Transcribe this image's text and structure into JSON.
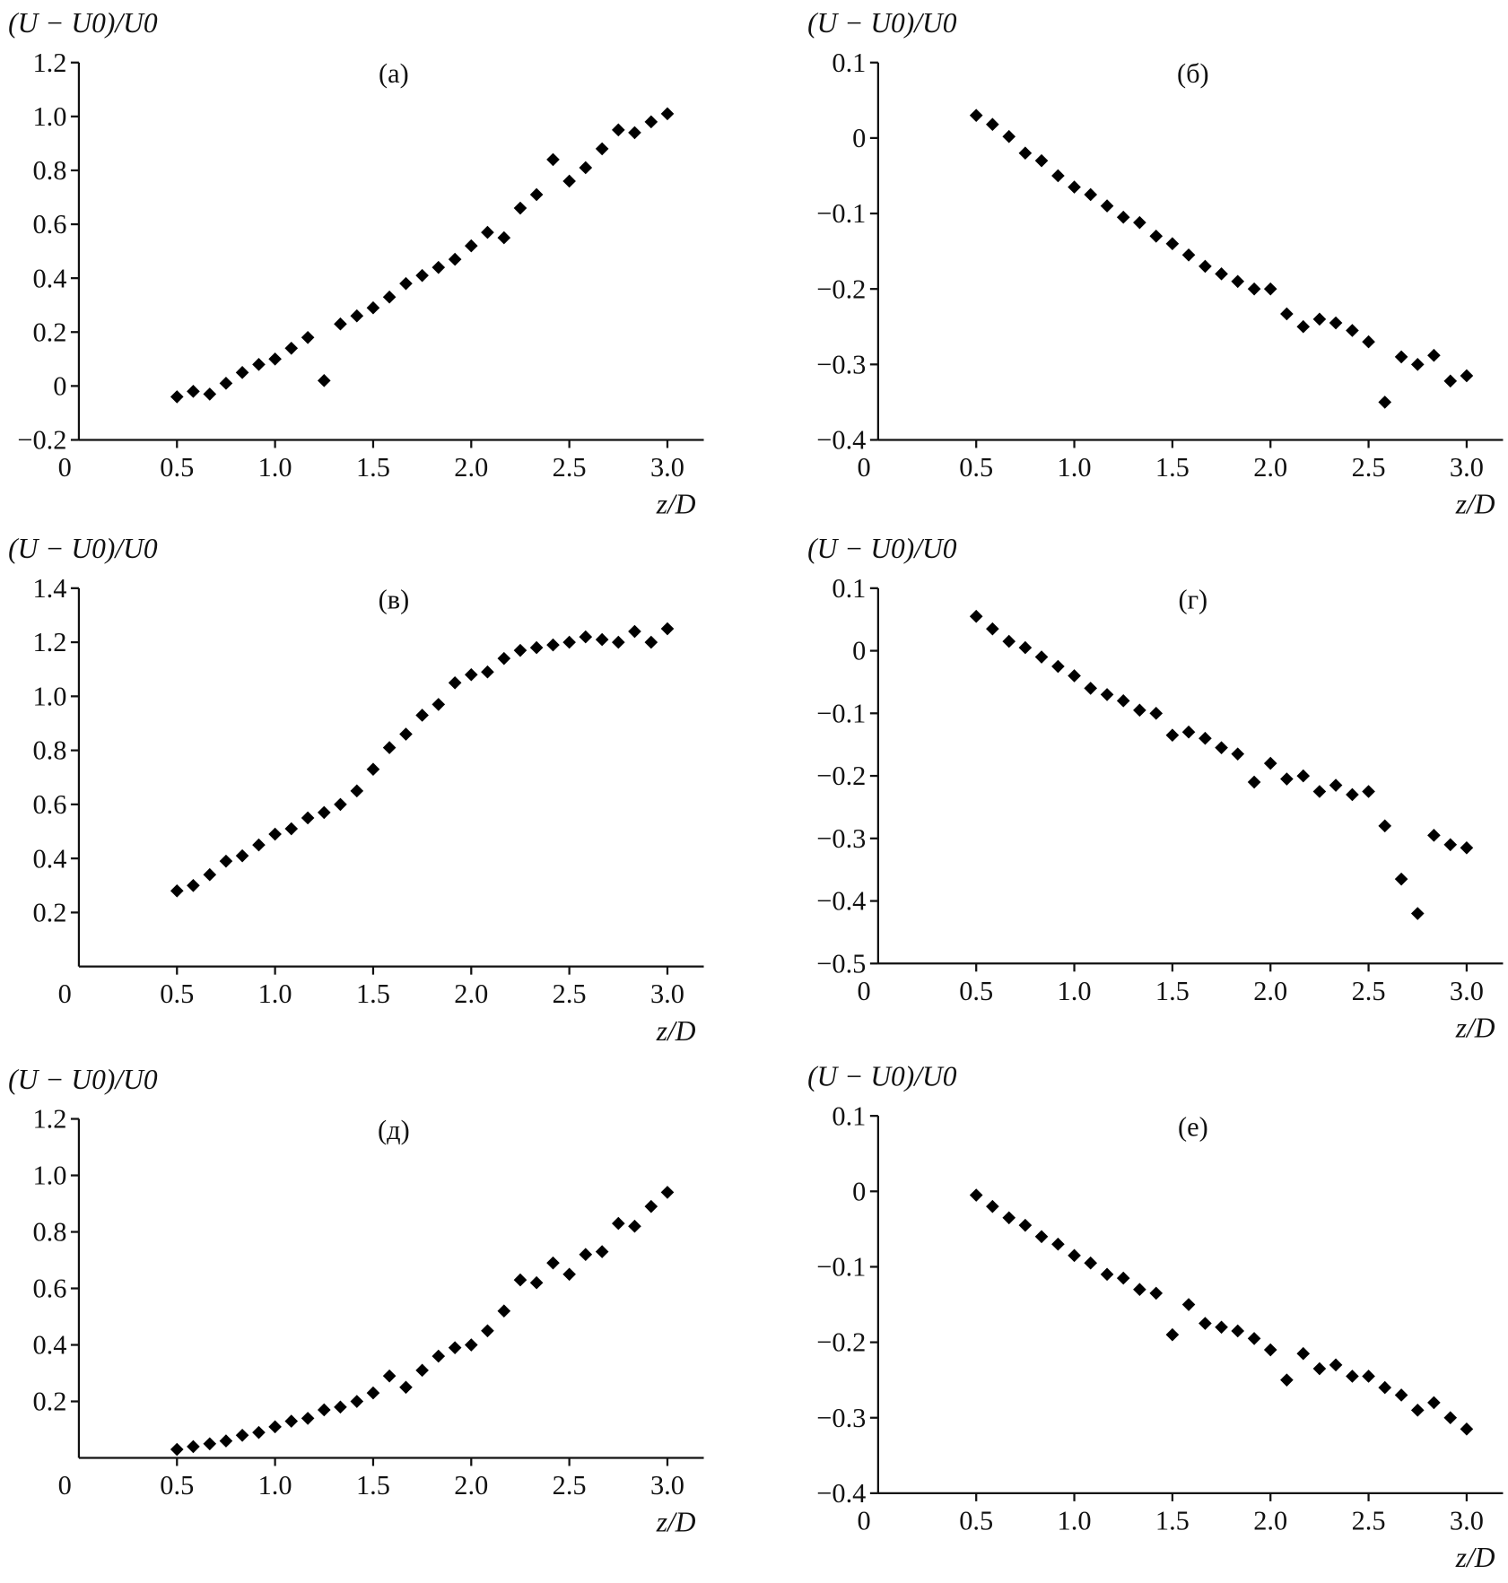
{
  "chart_data": [
    {
      "type": "scatter",
      "panel_label": "(а)",
      "ylabel": "(U − U0)/U0",
      "xlabel": "z/D",
      "xlim": [
        0,
        3.17
      ],
      "ylim": [
        -0.2,
        1.2
      ],
      "xticks": [
        "0",
        "0.5",
        "1.0",
        "1.5",
        "2.0",
        "2.5",
        "3.0"
      ],
      "yticks": [
        "−0.2",
        "0",
        "0.2",
        "0.4",
        "0.6",
        "0.8",
        "1.0",
        "1.2"
      ],
      "x": [
        0.5,
        0.583,
        0.667,
        0.75,
        0.833,
        0.917,
        1.0,
        1.083,
        1.167,
        1.25,
        1.333,
        1.417,
        1.5,
        1.583,
        1.667,
        1.75,
        1.833,
        1.917,
        2.0,
        2.083,
        2.167,
        2.25,
        2.333,
        2.417,
        2.5,
        2.583,
        2.667,
        2.75,
        2.833,
        2.917,
        3.0
      ],
      "y": [
        -0.04,
        -0.02,
        -0.03,
        0.01,
        0.05,
        0.08,
        0.1,
        0.14,
        0.18,
        0.02,
        0.23,
        0.26,
        0.29,
        0.33,
        0.38,
        0.41,
        0.44,
        0.47,
        0.52,
        0.57,
        0.55,
        0.66,
        0.71,
        0.84,
        0.76,
        0.81,
        0.88,
        0.95,
        0.94,
        0.98,
        1.01
      ]
    },
    {
      "type": "scatter",
      "panel_label": "(б)",
      "ylabel": "(U − U0)/U0",
      "xlabel": "z/D",
      "xlim": [
        0,
        3.17
      ],
      "ylim": [
        -0.4,
        0.1
      ],
      "xticks": [
        "0",
        "0.5",
        "1.0",
        "1.5",
        "2.0",
        "2.5",
        "3.0"
      ],
      "yticks": [
        "−0.4",
        "−0.3",
        "−0.2",
        "−0.1",
        "0",
        "0.1"
      ],
      "x": [
        0.5,
        0.583,
        0.667,
        0.75,
        0.833,
        0.917,
        1.0,
        1.083,
        1.167,
        1.25,
        1.333,
        1.417,
        1.5,
        1.583,
        1.667,
        1.75,
        1.833,
        1.917,
        2.0,
        2.083,
        2.167,
        2.25,
        2.333,
        2.417,
        2.5,
        2.583,
        2.667,
        2.75,
        2.833,
        2.917,
        3.0
      ],
      "y": [
        0.03,
        0.018,
        0.002,
        -0.02,
        -0.03,
        -0.05,
        -0.065,
        -0.075,
        -0.09,
        -0.105,
        -0.112,
        -0.13,
        -0.14,
        -0.155,
        -0.17,
        -0.18,
        -0.19,
        -0.2,
        -0.2,
        -0.233,
        -0.25,
        -0.24,
        -0.245,
        -0.255,
        -0.27,
        -0.35,
        -0.29,
        -0.3,
        -0.288,
        -0.322,
        -0.315
      ]
    },
    {
      "type": "scatter",
      "panel_label": "(в)",
      "ylabel": "(U − U0)/U0",
      "xlabel": "z/D",
      "xlim": [
        0,
        3.17
      ],
      "ylim": [
        0,
        1.4
      ],
      "xticks": [
        "0",
        "0.5",
        "1.0",
        "1.5",
        "2.0",
        "2.5",
        "3.0"
      ],
      "yticks": [
        "0.2",
        "0.4",
        "0.6",
        "0.8",
        "1.0",
        "1.2",
        "1.4"
      ],
      "x": [
        0.5,
        0.583,
        0.667,
        0.75,
        0.833,
        0.917,
        1.0,
        1.083,
        1.167,
        1.25,
        1.333,
        1.417,
        1.5,
        1.583,
        1.667,
        1.75,
        1.833,
        1.917,
        2.0,
        2.083,
        2.167,
        2.25,
        2.333,
        2.417,
        2.5,
        2.583,
        2.667,
        2.75,
        2.833,
        2.917,
        3.0
      ],
      "y": [
        0.28,
        0.3,
        0.34,
        0.39,
        0.41,
        0.45,
        0.49,
        0.51,
        0.55,
        0.57,
        0.6,
        0.65,
        0.73,
        0.81,
        0.86,
        0.93,
        0.97,
        1.05,
        1.08,
        1.09,
        1.14,
        1.17,
        1.18,
        1.19,
        1.2,
        1.22,
        1.21,
        1.2,
        1.24,
        1.2,
        1.25
      ]
    },
    {
      "type": "scatter",
      "panel_label": "(г)",
      "ylabel": "(U − U0)/U0",
      "xlabel": "z/D",
      "xlim": [
        0,
        3.17
      ],
      "ylim": [
        -0.5,
        0.1
      ],
      "xticks": [
        "0",
        "0.5",
        "1.0",
        "1.5",
        "2.0",
        "2.5",
        "3.0"
      ],
      "yticks": [
        "−0.5",
        "−0.4",
        "−0.3",
        "−0.2",
        "−0.1",
        "0",
        "0.1"
      ],
      "x": [
        0.5,
        0.583,
        0.667,
        0.75,
        0.833,
        0.917,
        1.0,
        1.083,
        1.167,
        1.25,
        1.333,
        1.417,
        1.5,
        1.583,
        1.667,
        1.75,
        1.833,
        1.917,
        2.0,
        2.083,
        2.167,
        2.25,
        2.333,
        2.417,
        2.5,
        2.583,
        2.667,
        2.75,
        2.833,
        2.917,
        3.0
      ],
      "y": [
        0.055,
        0.035,
        0.015,
        0.005,
        -0.01,
        -0.025,
        -0.04,
        -0.06,
        -0.07,
        -0.08,
        -0.095,
        -0.1,
        -0.135,
        -0.13,
        -0.14,
        -0.155,
        -0.165,
        -0.21,
        -0.18,
        -0.205,
        -0.2,
        -0.225,
        -0.215,
        -0.23,
        -0.225,
        -0.28,
        -0.365,
        -0.42,
        -0.295,
        -0.31,
        -0.315
      ]
    },
    {
      "type": "scatter",
      "panel_label": "(д)",
      "ylabel": "(U − U0)/U0",
      "xlabel": "z/D",
      "xlim": [
        0,
        3.17
      ],
      "ylim": [
        0,
        1.2
      ],
      "xticks": [
        "0",
        "0.5",
        "1.0",
        "1.5",
        "2.0",
        "2.5",
        "3.0"
      ],
      "yticks": [
        "0.2",
        "0.4",
        "0.6",
        "0.8",
        "1.0",
        "1.2"
      ],
      "x": [
        0.5,
        0.583,
        0.667,
        0.75,
        0.833,
        0.917,
        1.0,
        1.083,
        1.167,
        1.25,
        1.333,
        1.417,
        1.5,
        1.583,
        1.667,
        1.75,
        1.833,
        1.917,
        2.0,
        2.083,
        2.167,
        2.25,
        2.333,
        2.417,
        2.5,
        2.583,
        2.667,
        2.75,
        2.833,
        2.917,
        3.0
      ],
      "y": [
        0.03,
        0.04,
        0.05,
        0.06,
        0.08,
        0.09,
        0.11,
        0.13,
        0.14,
        0.17,
        0.18,
        0.2,
        0.23,
        0.29,
        0.25,
        0.31,
        0.36,
        0.39,
        0.4,
        0.45,
        0.52,
        0.63,
        0.62,
        0.69,
        0.65,
        0.72,
        0.73,
        0.83,
        0.82,
        0.89,
        0.94
      ]
    },
    {
      "type": "scatter",
      "panel_label": "(е)",
      "ylabel": "(U − U0)/U0",
      "xlabel": "z/D",
      "xlim": [
        0,
        3.17
      ],
      "ylim": [
        -0.4,
        0.1
      ],
      "xticks": [
        "0",
        "0.5",
        "1.0",
        "1.5",
        "2.0",
        "2.5",
        "3.0"
      ],
      "yticks": [
        "−0.4",
        "−0.3",
        "−0.2",
        "−0.1",
        "0",
        "0.1"
      ],
      "x": [
        0.5,
        0.583,
        0.667,
        0.75,
        0.833,
        0.917,
        1.0,
        1.083,
        1.167,
        1.25,
        1.333,
        1.417,
        1.5,
        1.583,
        1.667,
        1.75,
        1.833,
        1.917,
        2.0,
        2.083,
        2.167,
        2.25,
        2.333,
        2.417,
        2.5,
        2.583,
        2.667,
        2.75,
        2.833,
        2.917,
        3.0
      ],
      "y": [
        -0.005,
        -0.02,
        -0.035,
        -0.045,
        -0.06,
        -0.07,
        -0.085,
        -0.095,
        -0.11,
        -0.115,
        -0.13,
        -0.135,
        -0.19,
        -0.15,
        -0.175,
        -0.18,
        -0.185,
        -0.195,
        -0.21,
        -0.25,
        -0.215,
        -0.235,
        -0.23,
        -0.245,
        -0.245,
        -0.26,
        -0.27,
        -0.29,
        -0.28,
        -0.3,
        -0.315
      ]
    }
  ]
}
